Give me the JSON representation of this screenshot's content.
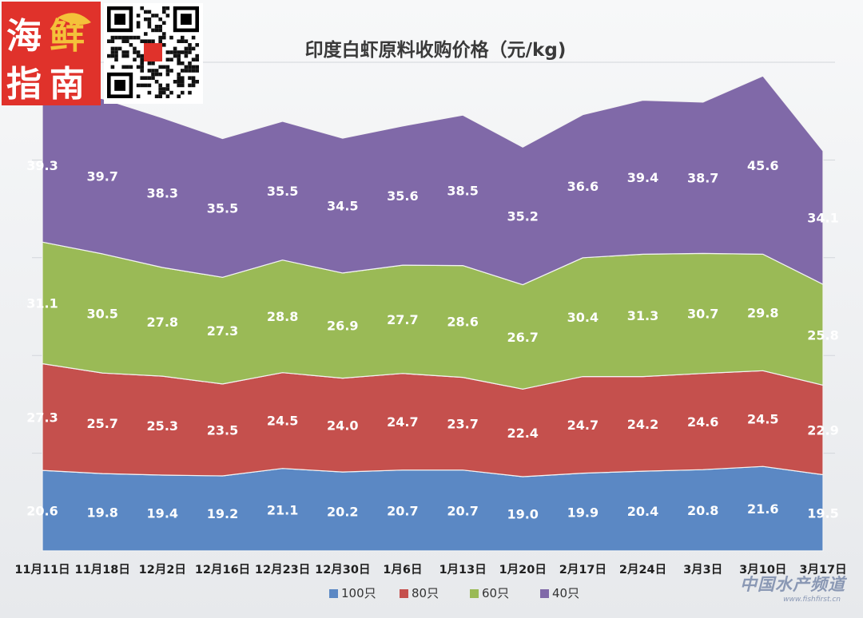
{
  "logo": {
    "text": [
      "海",
      "鲜",
      "指",
      "南"
    ]
  },
  "watermark": {
    "text": "中国水产频道",
    "url": "www.fishfirst.cn"
  },
  "chart_data": {
    "type": "area",
    "stacked": true,
    "title": "印度白虾原料收购价格（元/kg)",
    "categories": [
      "11月11日",
      "11月18日",
      "12月2日",
      "12月16日",
      "12月23日",
      "12月30日",
      "1月6日",
      "1月13日",
      "1月20日",
      "2月17日",
      "2月24日",
      "3月3日",
      "3月10日",
      "3月17日"
    ],
    "series": [
      {
        "name": "100只",
        "color": "#5b88c4",
        "values": [
          20.6,
          19.8,
          19.4,
          19.2,
          21.1,
          20.2,
          20.7,
          20.7,
          19.0,
          19.9,
          20.4,
          20.8,
          21.6,
          19.5
        ]
      },
      {
        "name": "80只",
        "color": "#c5504d",
        "values": [
          27.3,
          25.7,
          25.3,
          23.5,
          24.5,
          24.0,
          24.7,
          23.7,
          22.4,
          24.7,
          24.2,
          24.6,
          24.5,
          22.9
        ]
      },
      {
        "name": "60只",
        "color": "#9aba56",
        "values": [
          31.1,
          30.5,
          27.8,
          27.3,
          28.8,
          26.9,
          27.7,
          28.6,
          26.7,
          30.4,
          31.3,
          30.7,
          29.8,
          25.8
        ]
      },
      {
        "name": "40只",
        "color": "#8069a8",
        "values": [
          39.3,
          39.7,
          38.3,
          35.5,
          35.5,
          34.5,
          35.6,
          38.5,
          35.2,
          36.6,
          39.4,
          38.7,
          45.6,
          34.1
        ]
      }
    ],
    "value_labels": [
      [
        "20.6",
        "19.8",
        "19.4",
        "19.2",
        "21.1",
        "20.2",
        "20.7",
        "20.7",
        "19.0",
        "19.9",
        "20.4",
        "20.8",
        "21.6",
        "19.5"
      ],
      [
        "27.3",
        "25.7",
        "25.3",
        "23.5",
        "24.5",
        "24.0",
        "24.7",
        "23.7",
        "22.4",
        "24.7",
        "24.2",
        "24.6",
        "24.5",
        "22.9"
      ],
      [
        "31.1",
        "30.5",
        "27.8",
        "27.3",
        "28.8",
        "26.9",
        "27.7",
        "28.6",
        "26.7",
        "30.4",
        "31.3",
        "30.7",
        "29.8",
        "25.8"
      ],
      [
        "39.3",
        "39.7",
        "38.3",
        "35.5",
        "35.5",
        "34.5",
        "35.6",
        "38.5",
        "35.2",
        "36.6",
        "39.4",
        "38.7",
        "45.6",
        "34.1"
      ]
    ],
    "ylim": [
      0,
      125
    ],
    "grid": true,
    "legend_position": "bottom"
  }
}
